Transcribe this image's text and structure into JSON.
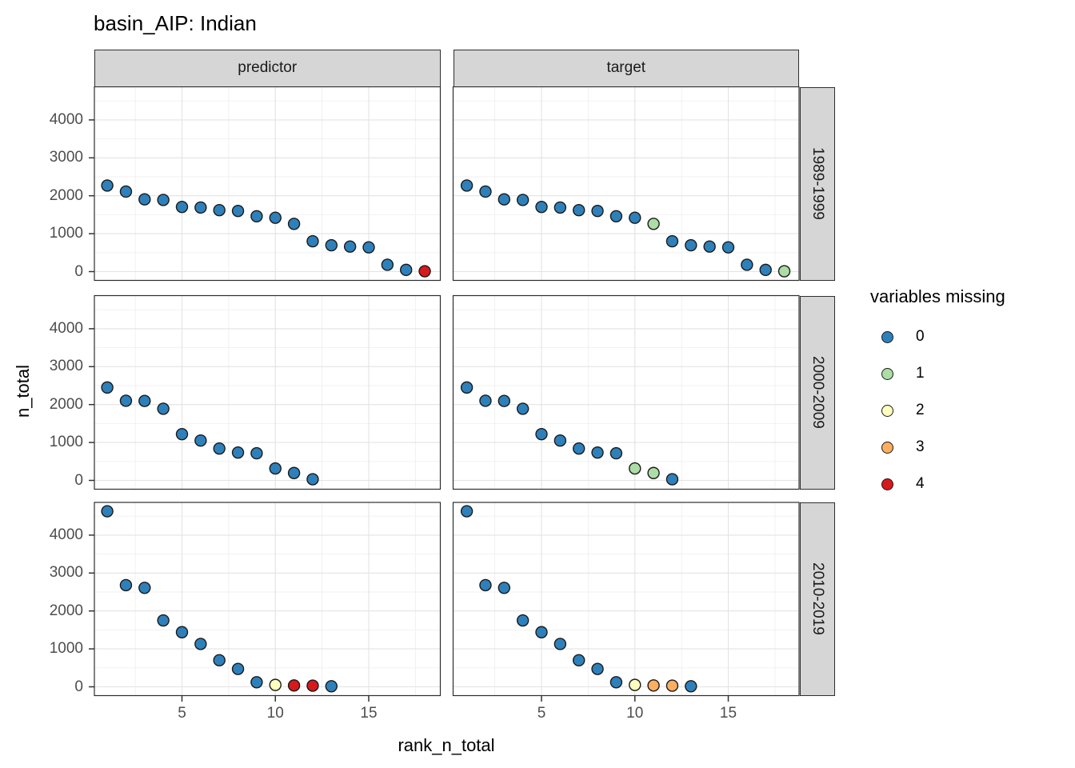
{
  "title": "basin_AIP: Indian",
  "axes": {
    "x_label": "rank_n_total",
    "y_label": "n_total",
    "x_ticks": [
      5,
      10,
      15
    ],
    "y_ticks": [
      0,
      1000,
      2000,
      3000,
      4000
    ]
  },
  "facets": {
    "columns": [
      "predictor",
      "target"
    ],
    "rows": [
      "1989-1999",
      "2000-2009",
      "2010-2019"
    ]
  },
  "legend": {
    "title": "variables missing",
    "items": [
      {
        "label": "0",
        "color": "#2e80ba"
      },
      {
        "label": "1",
        "color": "#abdda4"
      },
      {
        "label": "2",
        "color": "#ffffbf"
      },
      {
        "label": "3",
        "color": "#fdae61"
      },
      {
        "label": "4",
        "color": "#d7191c"
      }
    ]
  },
  "chart_data": {
    "type": "scatter",
    "xlabel": "rank_n_total",
    "ylabel": "n_total",
    "xlim": [
      1,
      18
    ],
    "ylim": [
      0,
      4630
    ],
    "grid": "on",
    "legend_position": "right",
    "color_variable": "variables missing",
    "panels": [
      {
        "facet_col": "predictor",
        "facet_row": "1989-1999",
        "ranks": [
          1,
          2,
          3,
          4,
          5,
          6,
          7,
          8,
          9,
          10,
          11,
          12,
          13,
          14,
          15,
          16,
          17,
          18
        ],
        "n_total": [
          2270,
          2110,
          1905,
          1890,
          1705,
          1690,
          1620,
          1600,
          1460,
          1420,
          1260,
          800,
          695,
          660,
          640,
          180,
          45,
          10
        ],
        "missing": [
          0,
          0,
          0,
          0,
          0,
          0,
          0,
          0,
          0,
          0,
          0,
          0,
          0,
          0,
          0,
          0,
          0,
          4
        ]
      },
      {
        "facet_col": "target",
        "facet_row": "1989-1999",
        "ranks": [
          1,
          2,
          3,
          4,
          5,
          6,
          7,
          8,
          9,
          10,
          11,
          12,
          13,
          14,
          15,
          16,
          17,
          18
        ],
        "n_total": [
          2270,
          2110,
          1905,
          1890,
          1705,
          1690,
          1620,
          1600,
          1460,
          1420,
          1260,
          800,
          695,
          660,
          640,
          180,
          45,
          10
        ],
        "missing": [
          0,
          0,
          0,
          0,
          0,
          0,
          0,
          0,
          0,
          0,
          1,
          0,
          0,
          0,
          0,
          0,
          0,
          1
        ]
      },
      {
        "facet_col": "predictor",
        "facet_row": "2000-2009",
        "ranks": [
          1,
          2,
          3,
          4,
          5,
          6,
          7,
          8,
          9,
          10,
          11,
          12
        ],
        "n_total": [
          2450,
          2100,
          2095,
          1890,
          1220,
          1050,
          840,
          735,
          715,
          315,
          195,
          30
        ],
        "missing": [
          0,
          0,
          0,
          0,
          0,
          0,
          0,
          0,
          0,
          0,
          0,
          0
        ]
      },
      {
        "facet_col": "target",
        "facet_row": "2000-2009",
        "ranks": [
          1,
          2,
          3,
          4,
          5,
          6,
          7,
          8,
          9,
          10,
          11,
          12
        ],
        "n_total": [
          2450,
          2100,
          2095,
          1890,
          1220,
          1050,
          840,
          735,
          715,
          315,
          195,
          30
        ],
        "missing": [
          0,
          0,
          0,
          0,
          0,
          0,
          0,
          0,
          0,
          1,
          1,
          0
        ]
      },
      {
        "facet_col": "predictor",
        "facet_row": "2010-2019",
        "ranks": [
          1,
          2,
          3,
          4,
          5,
          6,
          7,
          8,
          9,
          10,
          11,
          12,
          13
        ],
        "n_total": [
          4630,
          2680,
          2610,
          1750,
          1440,
          1130,
          700,
          470,
          120,
          50,
          35,
          30,
          15
        ],
        "missing": [
          0,
          0,
          0,
          0,
          0,
          0,
          0,
          0,
          0,
          2,
          4,
          4,
          0
        ]
      },
      {
        "facet_col": "target",
        "facet_row": "2010-2019",
        "ranks": [
          1,
          2,
          3,
          4,
          5,
          6,
          7,
          8,
          9,
          10,
          11,
          12,
          13
        ],
        "n_total": [
          4630,
          2680,
          2610,
          1750,
          1440,
          1130,
          700,
          470,
          120,
          50,
          35,
          30,
          15
        ],
        "missing": [
          0,
          0,
          0,
          0,
          0,
          0,
          0,
          0,
          0,
          2,
          3,
          3,
          0
        ]
      }
    ]
  }
}
